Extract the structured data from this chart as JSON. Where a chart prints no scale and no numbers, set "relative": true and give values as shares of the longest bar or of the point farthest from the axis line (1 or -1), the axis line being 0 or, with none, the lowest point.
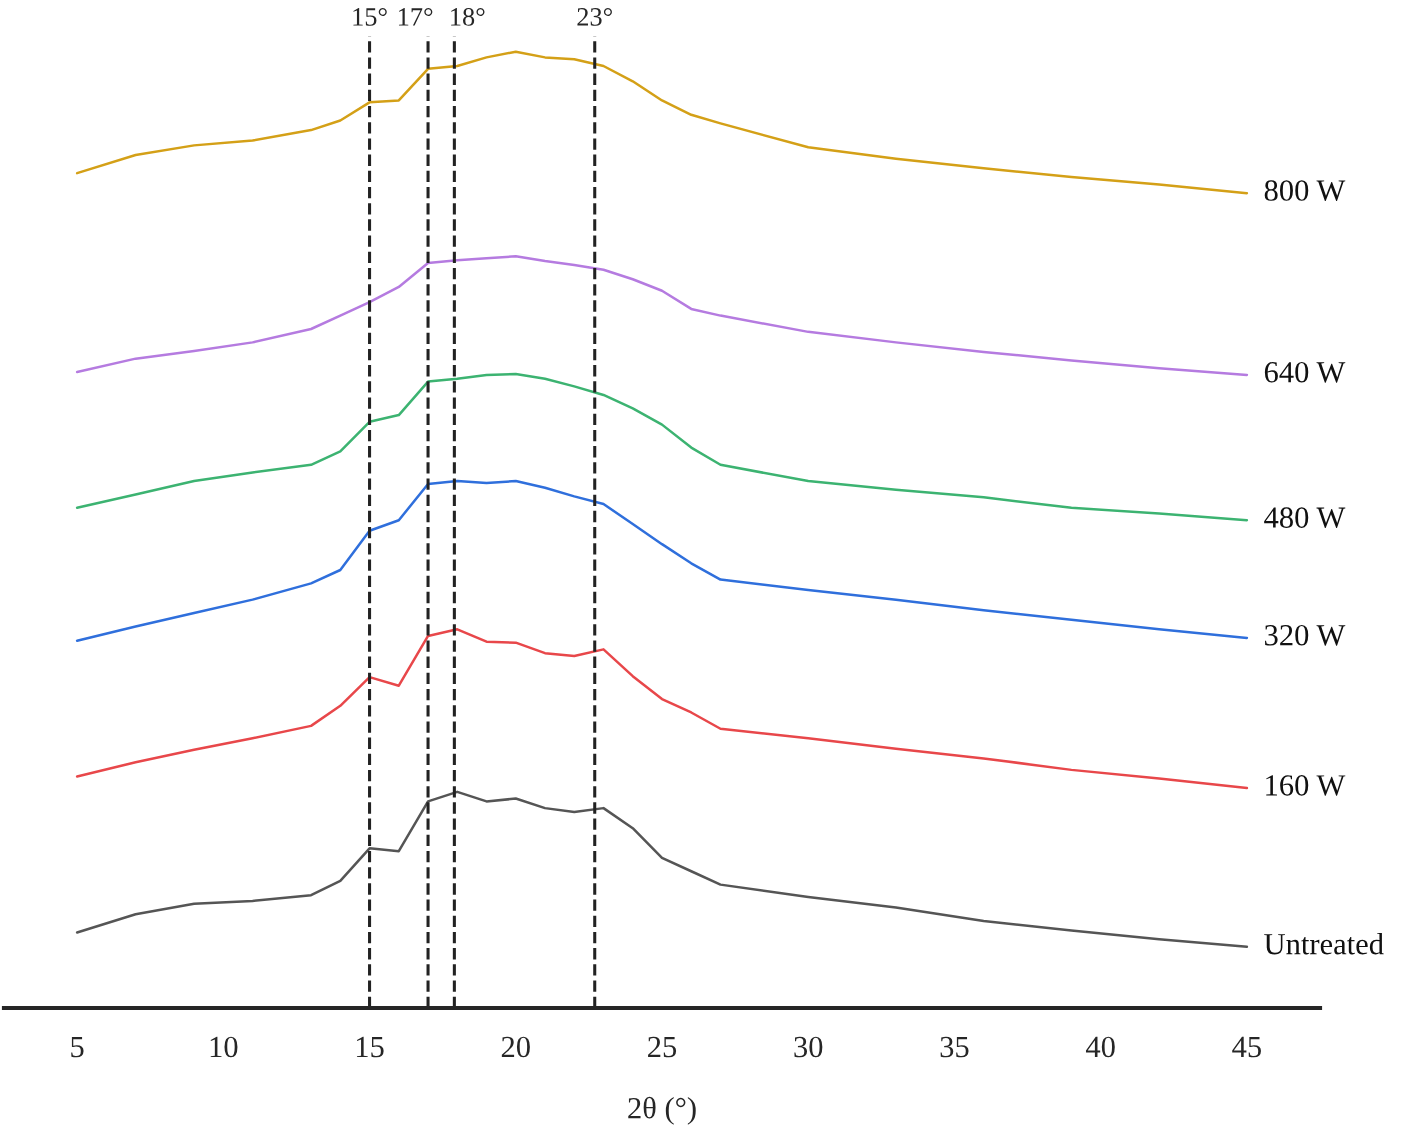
{
  "chart_data": {
    "type": "line",
    "xlabel": "2θ (°)",
    "relative": true,
    "xlim": [
      2.5,
      47.5
    ],
    "xticks": [
      5,
      10,
      15,
      20,
      25,
      30,
      35,
      40,
      45
    ],
    "grid": false,
    "legend": false,
    "line_style": "solid",
    "x": [
      5,
      7,
      9,
      11,
      13,
      14,
      15,
      16,
      17,
      18,
      19,
      20,
      21,
      22,
      23,
      24,
      25,
      26,
      27,
      30,
      33,
      36,
      39,
      42,
      45
    ],
    "series": [
      {
        "name": "Untreated",
        "color": "#555555",
        "values": [
          0.079,
          0.098,
          0.109,
          0.112,
          0.118,
          0.133,
          0.167,
          0.164,
          0.216,
          0.226,
          0.216,
          0.219,
          0.209,
          0.205,
          0.209,
          0.188,
          0.157,
          0.143,
          0.129,
          0.116,
          0.105,
          0.091,
          0.081,
          0.072,
          0.064
        ]
      },
      {
        "name": "160 W",
        "color": "#e8474a",
        "values": [
          0.242,
          0.257,
          0.27,
          0.282,
          0.295,
          0.316,
          0.346,
          0.337,
          0.389,
          0.396,
          0.383,
          0.382,
          0.371,
          0.368,
          0.375,
          0.347,
          0.323,
          0.309,
          0.292,
          0.282,
          0.271,
          0.261,
          0.249,
          0.24,
          0.23
        ]
      },
      {
        "name": "320 W",
        "color": "#2f6fdc",
        "values": [
          0.384,
          0.399,
          0.413,
          0.427,
          0.444,
          0.458,
          0.499,
          0.51,
          0.548,
          0.551,
          0.549,
          0.551,
          0.544,
          0.535,
          0.527,
          0.506,
          0.485,
          0.465,
          0.448,
          0.437,
          0.427,
          0.416,
          0.406,
          0.396,
          0.387
        ]
      },
      {
        "name": "480 W",
        "color": "#3cb371",
        "values": [
          0.523,
          0.537,
          0.551,
          0.56,
          0.568,
          0.582,
          0.613,
          0.62,
          0.655,
          0.658,
          0.662,
          0.663,
          0.658,
          0.65,
          0.641,
          0.627,
          0.61,
          0.586,
          0.568,
          0.551,
          0.542,
          0.534,
          0.523,
          0.517,
          0.51
        ]
      },
      {
        "name": "640 W",
        "color": "#b57be0",
        "values": [
          0.665,
          0.679,
          0.687,
          0.696,
          0.71,
          0.724,
          0.738,
          0.754,
          0.779,
          0.782,
          0.784,
          0.786,
          0.781,
          0.777,
          0.772,
          0.762,
          0.75,
          0.731,
          0.724,
          0.707,
          0.696,
          0.686,
          0.677,
          0.669,
          0.662
        ]
      },
      {
        "name": "800 W",
        "color": "#d4a017",
        "values": [
          0.873,
          0.892,
          0.902,
          0.907,
          0.918,
          0.928,
          0.947,
          0.949,
          0.982,
          0.985,
          0.994,
          1.0,
          0.994,
          0.992,
          0.985,
          0.969,
          0.949,
          0.934,
          0.925,
          0.9,
          0.888,
          0.878,
          0.869,
          0.861,
          0.852
        ]
      }
    ],
    "ref_lines": [
      {
        "axis": "x",
        "value": 15,
        "label": "15°",
        "color": "#222222",
        "line_style": "dashed"
      },
      {
        "axis": "x",
        "value": 17,
        "label": "17°",
        "color": "#222222",
        "line_style": "dashed"
      },
      {
        "axis": "x",
        "value": 17.9,
        "label": "18°",
        "color": "#222222",
        "line_style": "dashed"
      },
      {
        "axis": "x",
        "value": 22.7,
        "label": "23°",
        "color": "#222222",
        "line_style": "dashed"
      }
    ]
  }
}
